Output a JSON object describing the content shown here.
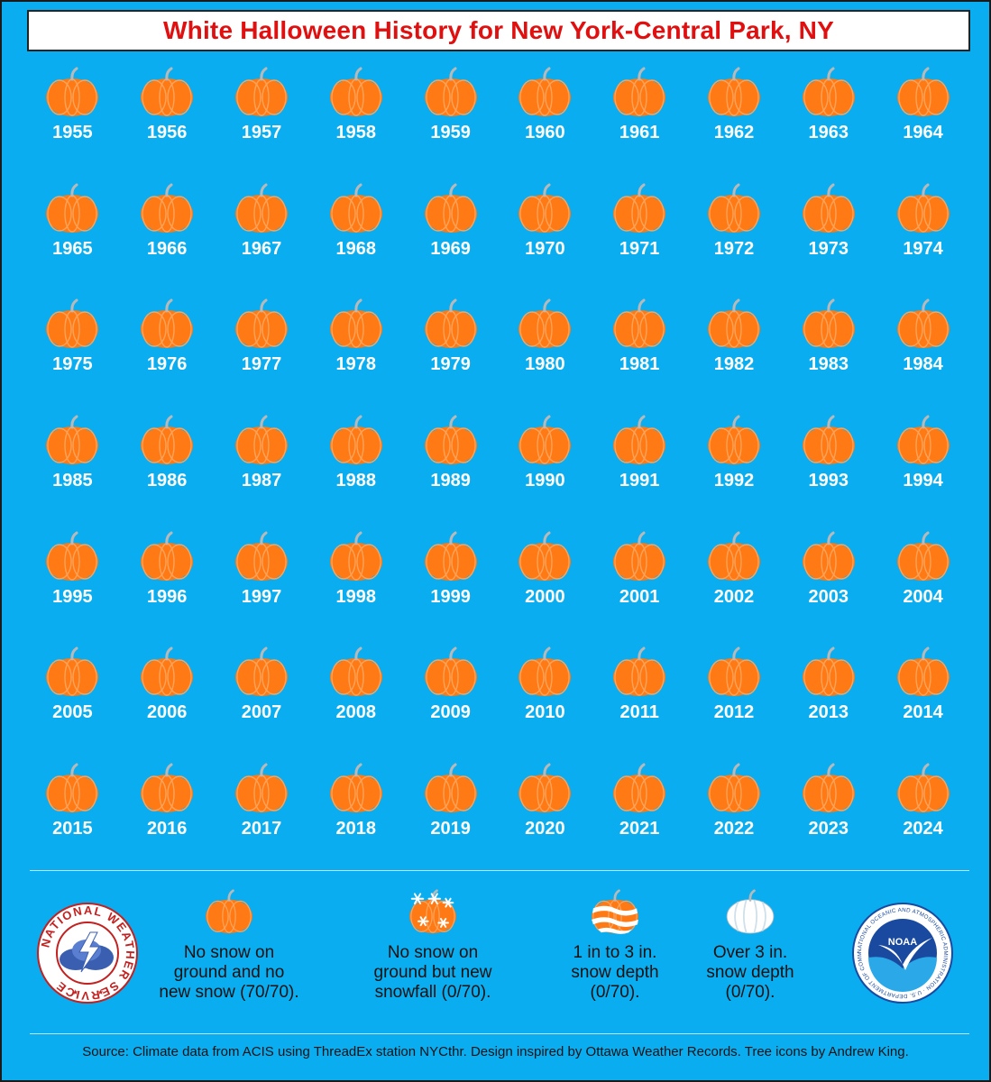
{
  "title": "White Halloween History for New York-Central Park, NY",
  "years": [
    "1955",
    "1956",
    "1957",
    "1958",
    "1959",
    "1960",
    "1961",
    "1962",
    "1963",
    "1964",
    "1965",
    "1966",
    "1967",
    "1968",
    "1969",
    "1970",
    "1971",
    "1972",
    "1973",
    "1974",
    "1975",
    "1976",
    "1977",
    "1978",
    "1979",
    "1980",
    "1981",
    "1982",
    "1983",
    "1984",
    "1985",
    "1986",
    "1987",
    "1988",
    "1989",
    "1990",
    "1991",
    "1992",
    "1993",
    "1994",
    "1995",
    "1996",
    "1997",
    "1998",
    "1999",
    "2000",
    "2001",
    "2002",
    "2003",
    "2004",
    "2005",
    "2006",
    "2007",
    "2008",
    "2009",
    "2010",
    "2011",
    "2012",
    "2013",
    "2014",
    "2015",
    "2016",
    "2017",
    "2018",
    "2019",
    "2020",
    "2021",
    "2022",
    "2023",
    "2024"
  ],
  "year_icon": "pumpkin-icon",
  "legend": [
    {
      "icon": "pumpkin-icon",
      "label": "No snow on\nground and no\nnew snow (70/70)."
    },
    {
      "icon": "pumpkin-snowflakes-icon",
      "label": "No snow on\nground but new\nsnowfall (0/70)."
    },
    {
      "icon": "pumpkin-snow-striped-icon",
      "label": "1 in to 3 in.\nsnow depth\n(0/70)."
    },
    {
      "icon": "pumpkin-white-icon",
      "label": "Over 3 in.\nsnow depth\n(0/70)."
    }
  ],
  "logos": {
    "nws": {
      "icon": "nws-logo",
      "text": "NATIONAL WEATHER SERVICE"
    },
    "noaa": {
      "icon": "noaa-logo",
      "text": "NOAA",
      "ring_text": "NATIONAL OCEANIC AND ATMOSPHERIC ADMINISTRATION · U.S. DEPARTMENT OF COMMERCE"
    }
  },
  "source": "Source: Climate data from ACIS using ThreadEx station NYCthr. Design inspired by Ottawa Weather Records. Tree icons by Andrew King.",
  "colors": {
    "background": "#0aaef0",
    "title": "#e01010",
    "pumpkin": "#ff7a14",
    "pumpkin_rib": "#ffa35a",
    "stem": "#b9b9b9",
    "year_text": "#ffffff"
  }
}
